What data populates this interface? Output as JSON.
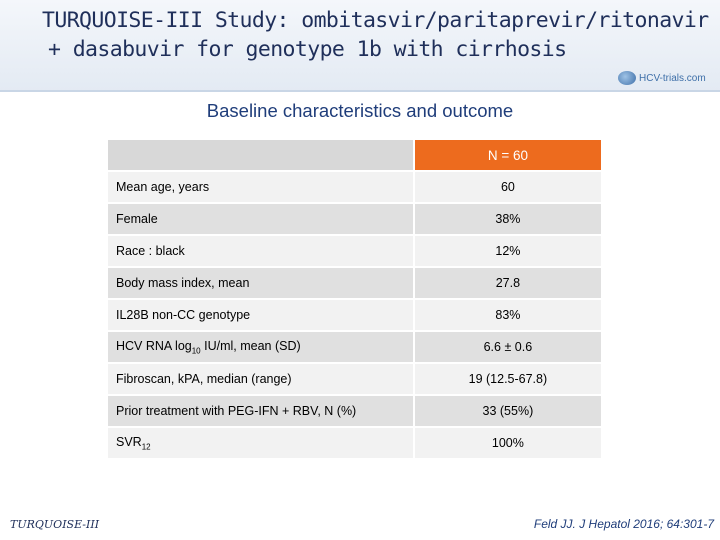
{
  "header": {
    "title_line1": "TURQUOISE-III Study: ombitasvir/paritaprevir/ritonavir",
    "title_line2": "+ dasabuvir for genotype 1b with cirrhosis",
    "logo_text": "HCV-trials.com"
  },
  "subtitle": "Baseline characteristics and outcome",
  "table": {
    "column_header": "N = 60",
    "rows": [
      {
        "label": "Mean age, years",
        "value": "60"
      },
      {
        "label": "Female",
        "value": "38%"
      },
      {
        "label": "Race : black",
        "value": "12%"
      },
      {
        "label": "Body mass index, mean",
        "value": "27.8"
      },
      {
        "label": "IL28B non-CC genotype",
        "value": "83%"
      },
      {
        "label_pre": "HCV RNA log",
        "label_sub": "10",
        "label_post": " IU/ml, mean (SD)",
        "value": "6.6 ± 0.6"
      },
      {
        "label": "Fibroscan, kPA, median (range)",
        "value": "19 (12.5-67.8)"
      },
      {
        "label": "Prior treatment with PEG-IFN + RBV, N (%)",
        "value": "33 (55%)"
      },
      {
        "label_pre": "SVR",
        "label_sub": "12",
        "label_post": "",
        "value": "100%"
      }
    ]
  },
  "footer": {
    "left": "TURQUOISE-III",
    "right": "Feld JJ. J Hepatol 2016; 64:301-7"
  },
  "colors": {
    "accent_orange": "#ed6b1e",
    "title_navy": "#1f2f5a",
    "subtitle_blue": "#1f3d7a"
  }
}
